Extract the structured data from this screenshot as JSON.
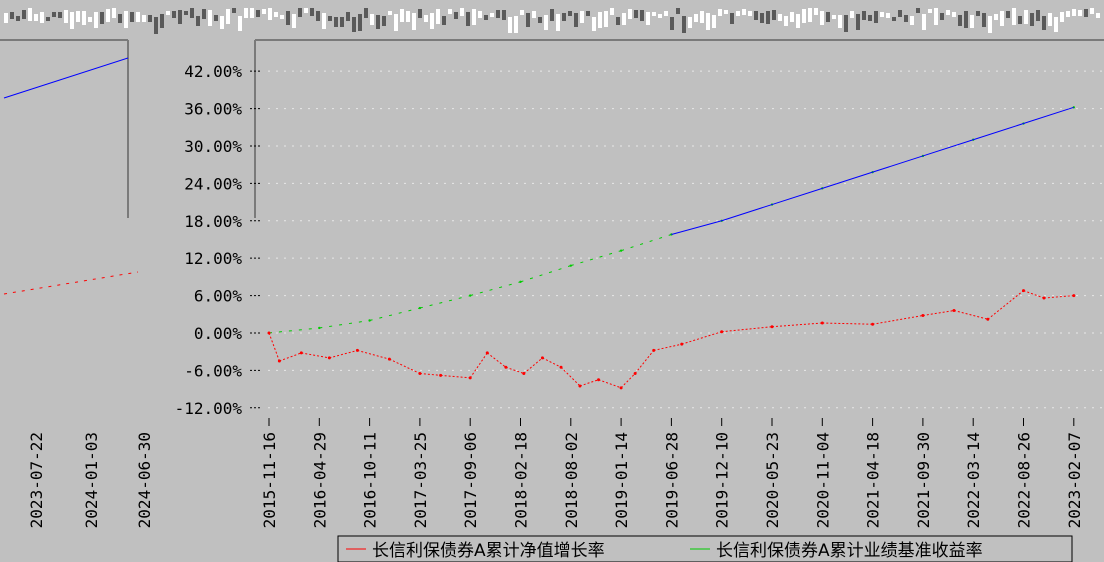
{
  "chart_data": {
    "type": "line",
    "title_garbled": "",
    "y_ticks": [
      "42.00%",
      "36.00%",
      "30.00%",
      "24.00%",
      "18.00%",
      "12.00%",
      "6.00%",
      "0.00%",
      "-6.00%",
      "-12.00%"
    ],
    "y_tick_values": [
      42,
      36,
      30,
      24,
      18,
      12,
      6,
      0,
      -6,
      -12
    ],
    "ylim": [
      -13,
      47
    ],
    "x_ticks": [
      "2015-11-16",
      "2016-04-29",
      "2016-10-11",
      "2017-03-25",
      "2017-09-06",
      "2018-02-18",
      "2018-08-02",
      "2019-01-14",
      "2019-06-28",
      "2019-12-10",
      "2020-05-23",
      "2020-11-04",
      "2021-04-18",
      "2021-09-30",
      "2022-03-14",
      "2022-08-26",
      "2023-02-07"
    ],
    "x_ticks_left": [
      "2023-07-22",
      "2024-01-03",
      "2024-06-30"
    ],
    "series": [
      {
        "name": "长信利保债券A累计净值增长率",
        "color": "#ff0000",
        "points": [
          [
            "2015-11-16",
            0.0
          ],
          [
            "2015-12-20",
            -4.5
          ],
          [
            "2016-03-01",
            -3.2
          ],
          [
            "2016-06-01",
            -4.0
          ],
          [
            "2016-09-01",
            -2.8
          ],
          [
            "2016-12-15",
            -4.2
          ],
          [
            "2017-03-25",
            -6.5
          ],
          [
            "2017-06-01",
            -6.8
          ],
          [
            "2017-09-06",
            -7.2
          ],
          [
            "2017-11-01",
            -3.2
          ],
          [
            "2018-01-01",
            -5.5
          ],
          [
            "2018-03-01",
            -6.5
          ],
          [
            "2018-05-01",
            -4.0
          ],
          [
            "2018-07-01",
            -5.5
          ],
          [
            "2018-09-01",
            -8.5
          ],
          [
            "2018-11-01",
            -7.5
          ],
          [
            "2019-01-14",
            -8.8
          ],
          [
            "2019-03-01",
            -6.5
          ],
          [
            "2019-05-01",
            -2.8
          ],
          [
            "2019-08-01",
            -1.8
          ],
          [
            "2019-12-10",
            0.2
          ],
          [
            "2020-05-23",
            1.0
          ],
          [
            "2020-11-04",
            1.6
          ],
          [
            "2021-04-18",
            1.4
          ],
          [
            "2021-09-30",
            2.8
          ],
          [
            "2022-01-10",
            3.6
          ],
          [
            "2022-05-01",
            2.2
          ],
          [
            "2022-08-26",
            6.8
          ],
          [
            "2022-11-01",
            5.6
          ],
          [
            "2023-02-07",
            6.0
          ],
          [
            "2023-07-22",
            6.8
          ],
          [
            "2024-01-03",
            7.8
          ],
          [
            "2024-06-30",
            10.0
          ]
        ]
      },
      {
        "name": "长信利保债券A累计业绩基准收益率",
        "color": "#00cc00",
        "points": [
          [
            "2015-11-16",
            0.0
          ],
          [
            "2016-04-29",
            0.8
          ],
          [
            "2016-10-11",
            2.0
          ],
          [
            "2017-03-25",
            4.0
          ],
          [
            "2017-09-06",
            6.0
          ],
          [
            "2018-02-18",
            8.2
          ],
          [
            "2018-08-02",
            10.8
          ],
          [
            "2019-01-14",
            13.2
          ],
          [
            "2019-06-28",
            15.8
          ],
          [
            "2019-12-10",
            18.0
          ],
          [
            "2020-05-23",
            20.6
          ],
          [
            "2020-11-04",
            23.2
          ],
          [
            "2021-04-18",
            25.8
          ],
          [
            "2021-09-30",
            28.4
          ],
          [
            "2022-03-14",
            31.0
          ],
          [
            "2022-08-26",
            33.6
          ],
          [
            "2023-02-07",
            36.2
          ],
          [
            "2023-07-22",
            38.0
          ],
          [
            "2024-01-03",
            40.6
          ],
          [
            "2024-06-30",
            43.2
          ]
        ]
      }
    ],
    "grid": true,
    "legend": "bottom-right"
  }
}
